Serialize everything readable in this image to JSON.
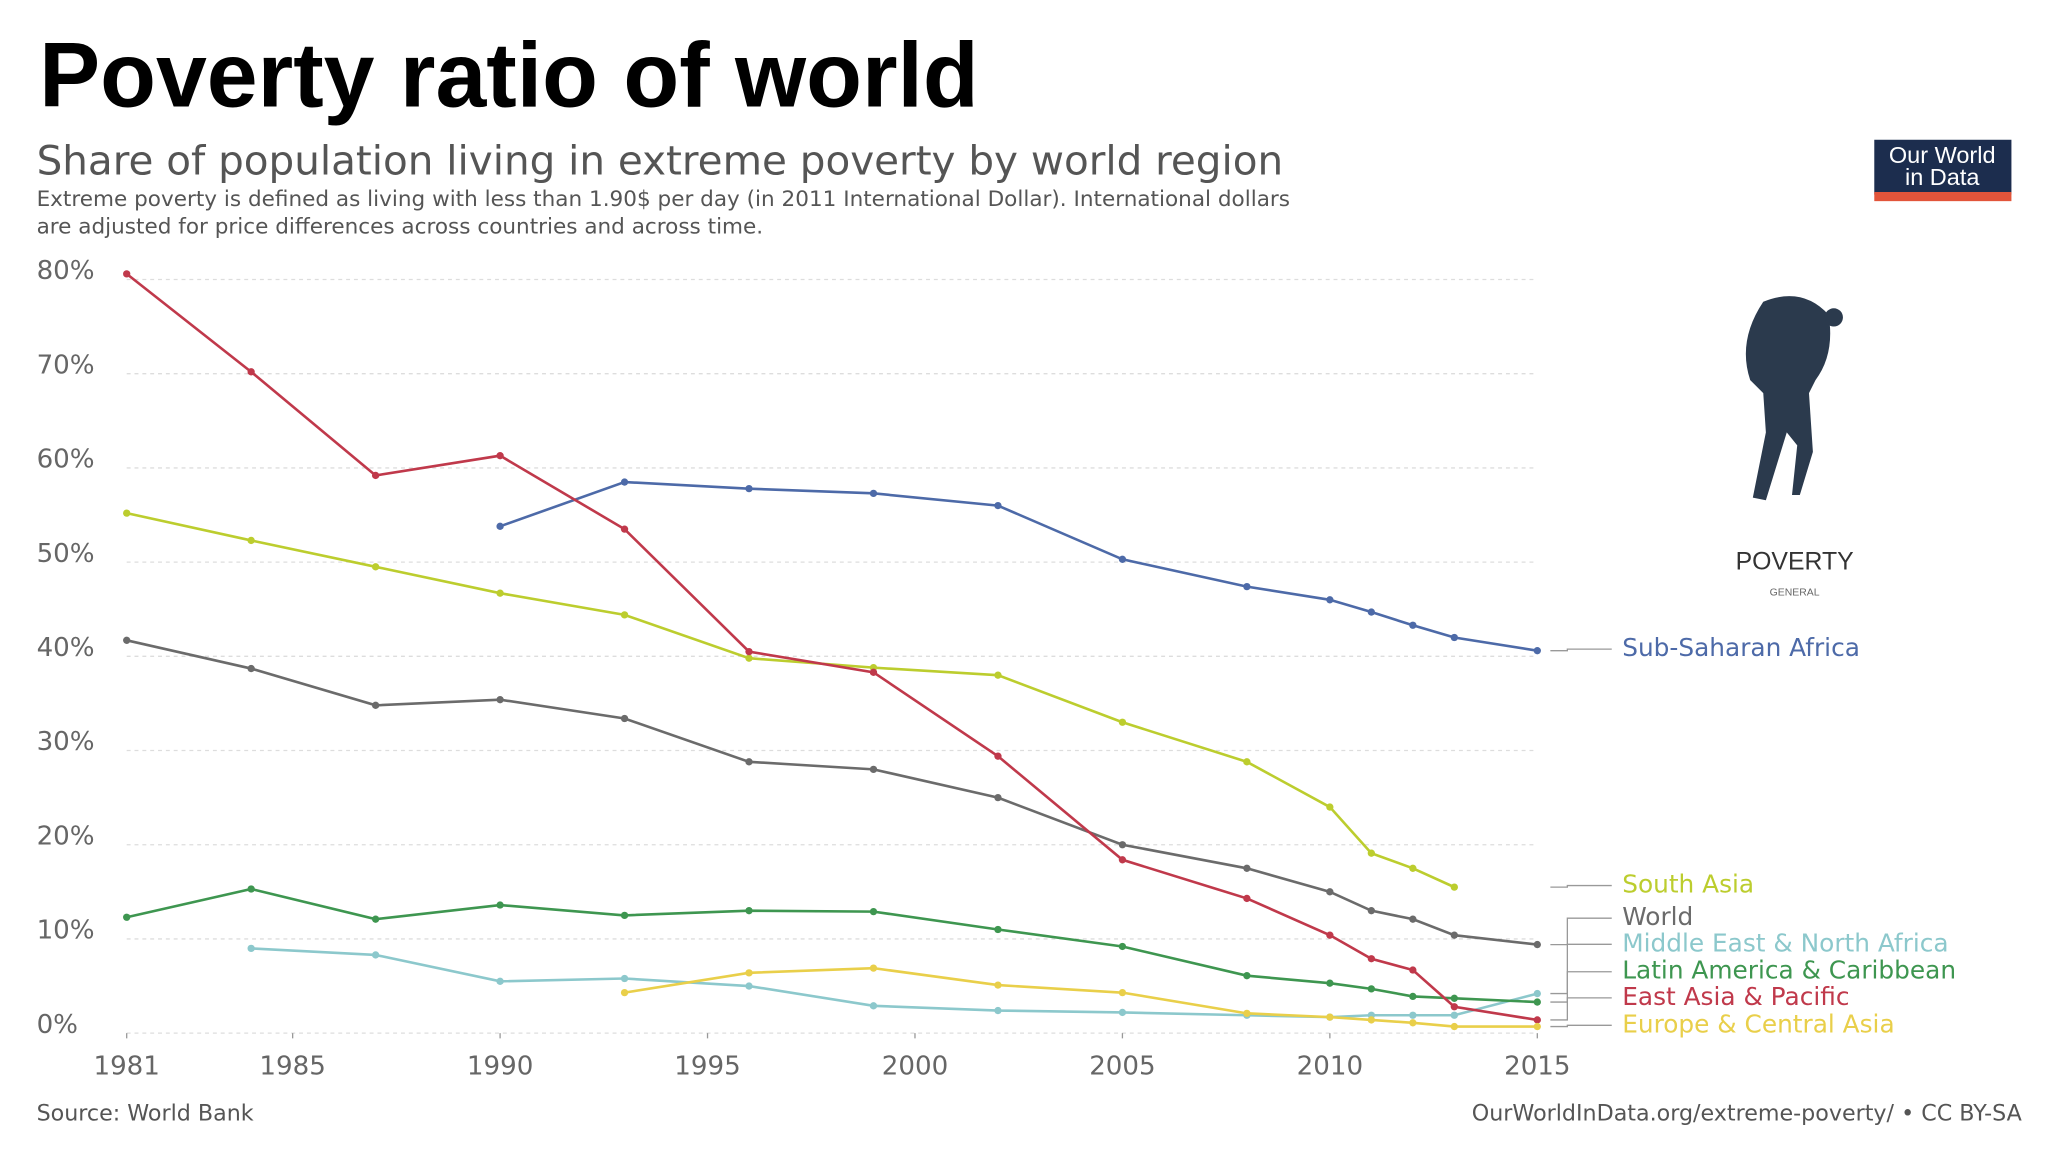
{
  "heading": "Poverty ratio of world",
  "logo": [
    "Our World",
    "in Data"
  ],
  "icon_caption": "POVERTY",
  "icon_subcaption": "GENERAL",
  "chart_data": {
    "type": "line",
    "title": "Share of population living in extreme poverty by world region",
    "subtitle": [
      "Extreme poverty is defined as living with less than 1.90$ per day (in 2011 International Dollar). International dollars",
      "are adjusted for price differences across countries and across time."
    ],
    "source": "Source: World Bank",
    "credit": "OurWorldInData.org/extreme-poverty/ • CC BY-SA",
    "xlim": [
      1981,
      2015
    ],
    "xticks": [
      1981,
      1985,
      1990,
      1995,
      2000,
      2005,
      2010,
      2015
    ],
    "ylim": [
      0,
      80
    ],
    "yticks": [
      {
        "value": 0,
        "label": "0%"
      },
      {
        "value": 10,
        "label": "10%"
      },
      {
        "value": 20,
        "label": "20%"
      },
      {
        "value": 30,
        "label": "30%"
      },
      {
        "value": 40,
        "label": "40%"
      },
      {
        "value": 50,
        "label": "50%"
      },
      {
        "value": 60,
        "label": "60%"
      },
      {
        "value": 70,
        "label": "70%"
      },
      {
        "value": 80,
        "label": "80%"
      }
    ],
    "grid": true,
    "series": [
      {
        "name": "Sub-Saharan Africa",
        "color": "#4d6aa8",
        "x": [
          1990,
          1993,
          1996,
          1999,
          2002,
          2005,
          2008,
          2010,
          2011,
          2012,
          2013,
          2015
        ],
        "values": [
          53.8,
          58.5,
          57.8,
          57.3,
          56.0,
          50.3,
          47.4,
          46.0,
          44.7,
          43.3,
          42.0,
          40.6
        ]
      },
      {
        "name": "South Asia",
        "color": "#bccd2e",
        "x": [
          1981,
          1984,
          1987,
          1990,
          1993,
          1996,
          1999,
          2002,
          2005,
          2008,
          2010,
          2011,
          2012,
          2013
        ],
        "values": [
          55.2,
          52.3,
          49.5,
          46.7,
          44.4,
          39.8,
          38.8,
          38.0,
          33.0,
          28.8,
          24.0,
          19.1,
          17.5,
          15.5
        ]
      },
      {
        "name": "World",
        "color": "#6b6b6b",
        "x": [
          1981,
          1984,
          1987,
          1990,
          1993,
          1996,
          1999,
          2002,
          2005,
          2008,
          2010,
          2011,
          2012,
          2013,
          2015
        ],
        "values": [
          41.7,
          38.7,
          34.8,
          35.4,
          33.4,
          28.8,
          28.0,
          25.0,
          20.0,
          17.5,
          15.0,
          13.0,
          12.1,
          10.4,
          9.4
        ]
      },
      {
        "name": "Middle East & North Africa",
        "color": "#8cc8cc",
        "x": [
          1984,
          1987,
          1990,
          1993,
          1996,
          1999,
          2002,
          2005,
          2008,
          2010,
          2011,
          2012,
          2013,
          2015
        ],
        "values": [
          9.0,
          8.3,
          5.5,
          5.8,
          5.0,
          2.9,
          2.4,
          2.2,
          1.9,
          1.7,
          1.9,
          1.9,
          1.9,
          4.2
        ]
      },
      {
        "name": "Latin America & Caribbean",
        "color": "#3e9650",
        "x": [
          1981,
          1984,
          1987,
          1990,
          1993,
          1996,
          1999,
          2002,
          2005,
          2008,
          2010,
          2011,
          2012,
          2013,
          2015
        ],
        "values": [
          12.3,
          15.3,
          12.1,
          13.6,
          12.5,
          13.0,
          12.9,
          11.0,
          9.2,
          6.1,
          5.3,
          4.7,
          3.9,
          3.7,
          3.3
        ]
      },
      {
        "name": "East Asia & Pacific",
        "color": "#c0394b",
        "x": [
          1981,
          1984,
          1987,
          1990,
          1993,
          1996,
          1999,
          2002,
          2005,
          2008,
          2010,
          2011,
          2012,
          2013,
          2015
        ],
        "values": [
          80.6,
          70.2,
          59.2,
          61.3,
          53.5,
          40.5,
          38.3,
          29.4,
          18.4,
          14.3,
          10.4,
          7.9,
          6.7,
          2.8,
          1.4
        ]
      },
      {
        "name": "Europe & Central Asia",
        "color": "#e9cf4a",
        "x": [
          1993,
          1996,
          1999,
          2002,
          2005,
          2008,
          2010,
          2011,
          2012,
          2013,
          2015
        ],
        "values": [
          4.3,
          6.4,
          6.9,
          5.1,
          4.3,
          2.1,
          1.7,
          1.4,
          1.1,
          0.7,
          0.7
        ]
      }
    ]
  }
}
